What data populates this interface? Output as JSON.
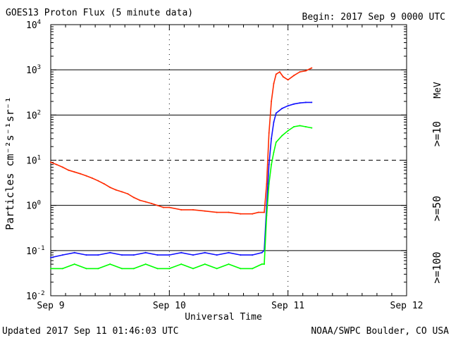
{
  "chart_data": {
    "type": "line",
    "title": "GOES13 Proton Flux (5 minute data)",
    "begin_label": "Begin: 2017 Sep 9 0000 UTC",
    "xlabel": "Universal Time",
    "ylabel": "Particles cm⁻²s⁻¹sr⁻¹",
    "footer_left": "Updated 2017 Sep 11 01:46:03 UTC",
    "footer_right": "NOAA/SWPC Boulder, CO USA",
    "y_scale": "log",
    "ylim": [
      0.01,
      10000
    ],
    "xlim_days": [
      0,
      3
    ],
    "x_ticks": [
      {
        "label": "Sep 9",
        "day": 0
      },
      {
        "label": "Sep 10",
        "day": 1
      },
      {
        "label": "Sep 11",
        "day": 2
      },
      {
        "label": "Sep 12",
        "day": 3
      }
    ],
    "y_ticks": [
      {
        "base": "10",
        "exp": "-2",
        "value": 0.01
      },
      {
        "base": "10",
        "exp": "-1",
        "value": 0.1
      },
      {
        "base": "10",
        "exp": "0",
        "value": 1
      },
      {
        "base": "10",
        "exp": "1",
        "value": 10
      },
      {
        "base": "10",
        "exp": "2",
        "value": 100
      },
      {
        "base": "10",
        "exp": "3",
        "value": 1000
      },
      {
        "base": "10",
        "exp": "4",
        "value": 10000
      }
    ],
    "reference_lines": [
      {
        "value": 0.1,
        "style": "solid"
      },
      {
        "value": 1,
        "style": "solid"
      },
      {
        "value": 10,
        "style": "dashed"
      },
      {
        "value": 100,
        "style": "solid"
      },
      {
        "value": 1000,
        "style": "solid"
      }
    ],
    "series": [
      {
        "name": ">=10 MeV",
        "color": "#ff2a00",
        "points": [
          [
            0.0,
            9.0
          ],
          [
            0.05,
            8.0
          ],
          [
            0.1,
            7.0
          ],
          [
            0.15,
            6.0
          ],
          [
            0.2,
            5.5
          ],
          [
            0.25,
            5.0
          ],
          [
            0.3,
            4.5
          ],
          [
            0.35,
            4.0
          ],
          [
            0.4,
            3.5
          ],
          [
            0.45,
            3.0
          ],
          [
            0.5,
            2.5
          ],
          [
            0.55,
            2.2
          ],
          [
            0.6,
            2.0
          ],
          [
            0.65,
            1.8
          ],
          [
            0.7,
            1.5
          ],
          [
            0.75,
            1.3
          ],
          [
            0.8,
            1.2
          ],
          [
            0.85,
            1.1
          ],
          [
            0.9,
            1.0
          ],
          [
            0.95,
            0.9
          ],
          [
            1.0,
            0.9
          ],
          [
            1.1,
            0.8
          ],
          [
            1.2,
            0.8
          ],
          [
            1.3,
            0.75
          ],
          [
            1.4,
            0.7
          ],
          [
            1.5,
            0.7
          ],
          [
            1.6,
            0.65
          ],
          [
            1.7,
            0.65
          ],
          [
            1.75,
            0.7
          ],
          [
            1.8,
            0.7
          ],
          [
            1.82,
            3.0
          ],
          [
            1.84,
            40
          ],
          [
            1.86,
            200
          ],
          [
            1.88,
            500
          ],
          [
            1.9,
            800
          ],
          [
            1.93,
            900
          ],
          [
            1.96,
            700
          ],
          [
            2.0,
            600
          ],
          [
            2.05,
            750
          ],
          [
            2.1,
            900
          ],
          [
            2.15,
            950
          ],
          [
            2.2,
            1100
          ]
        ]
      },
      {
        "name": ">=50 MeV",
        "color": "#1010ff",
        "points": [
          [
            0.0,
            0.07
          ],
          [
            0.1,
            0.08
          ],
          [
            0.2,
            0.09
          ],
          [
            0.3,
            0.08
          ],
          [
            0.4,
            0.08
          ],
          [
            0.5,
            0.09
          ],
          [
            0.6,
            0.08
          ],
          [
            0.7,
            0.08
          ],
          [
            0.8,
            0.09
          ],
          [
            0.9,
            0.08
          ],
          [
            1.0,
            0.08
          ],
          [
            1.1,
            0.09
          ],
          [
            1.2,
            0.08
          ],
          [
            1.3,
            0.09
          ],
          [
            1.4,
            0.08
          ],
          [
            1.5,
            0.09
          ],
          [
            1.6,
            0.08
          ],
          [
            1.7,
            0.08
          ],
          [
            1.78,
            0.09
          ],
          [
            1.8,
            0.1
          ],
          [
            1.82,
            1.0
          ],
          [
            1.84,
            8.0
          ],
          [
            1.86,
            30
          ],
          [
            1.88,
            70
          ],
          [
            1.9,
            110
          ],
          [
            1.95,
            140
          ],
          [
            2.0,
            160
          ],
          [
            2.05,
            175
          ],
          [
            2.1,
            185
          ],
          [
            2.15,
            190
          ],
          [
            2.2,
            190
          ]
        ]
      },
      {
        "name": ">=100 MeV",
        "color": "#00ff00",
        "points": [
          [
            0.0,
            0.04
          ],
          [
            0.1,
            0.04
          ],
          [
            0.2,
            0.05
          ],
          [
            0.3,
            0.04
          ],
          [
            0.4,
            0.04
          ],
          [
            0.5,
            0.05
          ],
          [
            0.6,
            0.04
          ],
          [
            0.7,
            0.04
          ],
          [
            0.8,
            0.05
          ],
          [
            0.9,
            0.04
          ],
          [
            1.0,
            0.04
          ],
          [
            1.1,
            0.05
          ],
          [
            1.2,
            0.04
          ],
          [
            1.3,
            0.05
          ],
          [
            1.4,
            0.04
          ],
          [
            1.5,
            0.05
          ],
          [
            1.6,
            0.04
          ],
          [
            1.7,
            0.04
          ],
          [
            1.78,
            0.05
          ],
          [
            1.8,
            0.05
          ],
          [
            1.82,
            0.6
          ],
          [
            1.84,
            3.0
          ],
          [
            1.86,
            8.0
          ],
          [
            1.88,
            15
          ],
          [
            1.9,
            25
          ],
          [
            1.95,
            35
          ],
          [
            2.0,
            45
          ],
          [
            2.05,
            55
          ],
          [
            2.1,
            58
          ],
          [
            2.15,
            55
          ],
          [
            2.2,
            52
          ]
        ]
      }
    ],
    "legend": [
      {
        "label": ">=10",
        "color": "#ff2a00"
      },
      {
        "label": ">=50",
        "color": "#1010ff"
      },
      {
        "label": ">=100",
        "color": "#00ff00"
      }
    ],
    "legend_unit": "MeV"
  }
}
